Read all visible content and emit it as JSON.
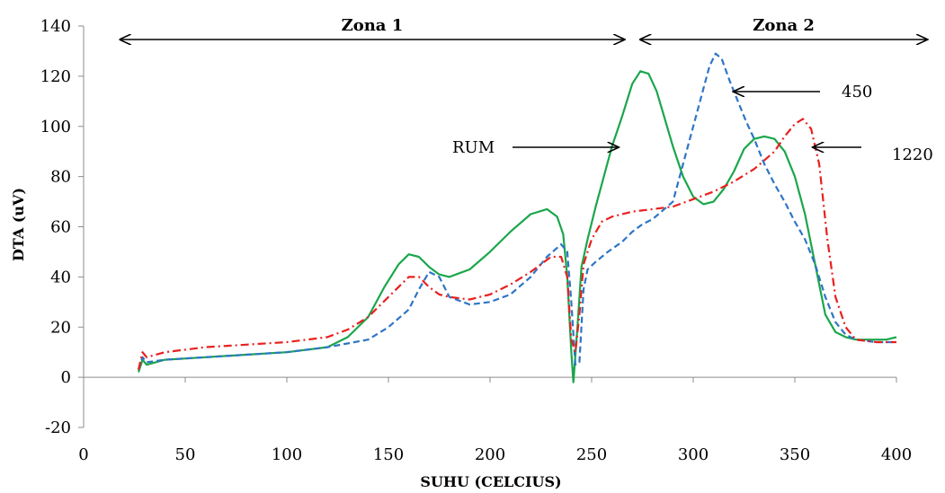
{
  "chart_data": {
    "type": "line",
    "title": "",
    "xlabel": "SUHU (CELCIUS)",
    "ylabel": "DTA (uV)",
    "xlim": [
      0,
      400
    ],
    "ylim": [
      -20,
      140
    ],
    "xticks": [
      0,
      50,
      100,
      150,
      200,
      250,
      300,
      350,
      400
    ],
    "yticks": [
      -20,
      0,
      20,
      40,
      60,
      80,
      100,
      120,
      140
    ],
    "grid": false,
    "legend": "none",
    "zones": [
      {
        "label": "Zona 1",
        "from": 18,
        "to": 266
      },
      {
        "label": "Zona 2",
        "from": 274,
        "to": 415
      }
    ],
    "annotations": [
      {
        "text": "RUM",
        "points_to": [
          263,
          91
        ]
      },
      {
        "text": "450",
        "points_to": [
          320,
          113
        ]
      },
      {
        "text": "1220",
        "points_to": [
          359,
          91
        ]
      }
    ],
    "series": [
      {
        "style": "solid",
        "color": "#1aa64b",
        "x": [
          27,
          29,
          31,
          40,
          60,
          80,
          100,
          120,
          130,
          140,
          148,
          155,
          160,
          165,
          170,
          175,
          180,
          190,
          200,
          210,
          220,
          228,
          233,
          236,
          238,
          240,
          241,
          243,
          245,
          248,
          252,
          256,
          260,
          265,
          270,
          274,
          278,
          282,
          286,
          290,
          295,
          300,
          305,
          310,
          315,
          320,
          325,
          330,
          335,
          340,
          345,
          350,
          355,
          360,
          365,
          370,
          375,
          380,
          385,
          390,
          395,
          400
        ],
        "y": [
          2,
          7,
          5,
          7,
          8,
          9,
          10,
          12,
          16,
          24,
          36,
          45,
          49,
          48,
          44,
          41,
          40,
          43,
          50,
          58,
          65,
          67,
          64,
          57,
          40,
          10,
          -2,
          20,
          44,
          55,
          68,
          80,
          92,
          104,
          117,
          122,
          121,
          114,
          103,
          92,
          80,
          72,
          69,
          70,
          75,
          82,
          91,
          95,
          96,
          95,
          90,
          80,
          65,
          45,
          25,
          18,
          16,
          15,
          15,
          15,
          15,
          16
        ]
      },
      {
        "style": "dashed",
        "color": "#2e75c6",
        "x": [
          27,
          29,
          31,
          40,
          60,
          80,
          100,
          120,
          140,
          150,
          160,
          165,
          170,
          175,
          180,
          190,
          200,
          210,
          220,
          228,
          235,
          238,
          240,
          242,
          244,
          246,
          248,
          252,
          258,
          265,
          270,
          275,
          280,
          290,
          295,
          300,
          305,
          308,
          311,
          314,
          318,
          322,
          326,
          330,
          335,
          340,
          345,
          350,
          355,
          360,
          365,
          370,
          375,
          380,
          390,
          400
        ],
        "y": [
          3,
          8,
          6,
          7,
          8,
          9,
          10,
          12,
          15,
          20,
          27,
          35,
          42,
          40,
          32,
          29,
          30,
          33,
          40,
          48,
          53,
          50,
          30,
          5,
          6,
          35,
          43,
          46,
          50,
          54,
          58,
          61,
          63,
          70,
          85,
          100,
          115,
          124,
          129,
          127,
          118,
          110,
          102,
          95,
          85,
          77,
          70,
          62,
          55,
          45,
          32,
          22,
          17,
          15,
          14,
          14
        ]
      },
      {
        "style": "dashdot",
        "color": "#e8201e",
        "x": [
          27,
          29,
          31,
          40,
          60,
          80,
          100,
          120,
          130,
          140,
          150,
          160,
          165,
          170,
          175,
          180,
          190,
          200,
          210,
          220,
          230,
          235,
          238,
          240,
          242,
          244,
          246,
          250,
          255,
          260,
          270,
          280,
          290,
          300,
          310,
          320,
          330,
          340,
          345,
          350,
          354,
          358,
          362,
          366,
          370,
          375,
          380,
          390,
          400
        ],
        "y": [
          3,
          10,
          8,
          10,
          12,
          13,
          14,
          16,
          19,
          24,
          32,
          40,
          40,
          36,
          33,
          32,
          31,
          33,
          37,
          42,
          48,
          48,
          40,
          15,
          10,
          25,
          45,
          55,
          62,
          64,
          66,
          67,
          68,
          71,
          74,
          78,
          83,
          90,
          96,
          101,
          103,
          99,
          85,
          55,
          32,
          20,
          15,
          14,
          14
        ]
      }
    ]
  }
}
